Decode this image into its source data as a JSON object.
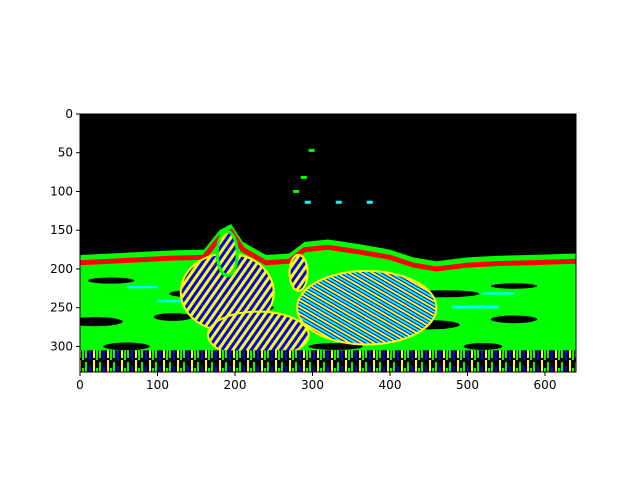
{
  "chart_data": {
    "type": "heatmap",
    "subtype": "image",
    "title": "",
    "xlabel": "",
    "ylabel": "",
    "xlim": [
      0,
      640
    ],
    "ylim": [
      333,
      0
    ],
    "xticks": [
      0,
      100,
      200,
      300,
      400,
      500,
      600
    ],
    "yticks": [
      0,
      50,
      100,
      150,
      200,
      250,
      300
    ],
    "y_axis_inverted": true,
    "grid": false,
    "colors": {
      "background": "#000000",
      "green": "#00ff00",
      "red": "#ff0000",
      "blue": "#0000ff",
      "yellow": "#ffff00",
      "cyan": "#00ffff"
    },
    "image_description_values": {
      "skyline_boundary": [
        [
          0,
          182
        ],
        [
          40,
          180
        ],
        [
          80,
          178
        ],
        [
          120,
          176
        ],
        [
          160,
          175
        ],
        [
          180,
          150
        ],
        [
          195,
          142
        ],
        [
          210,
          165
        ],
        [
          240,
          182
        ],
        [
          270,
          180
        ],
        [
          290,
          165
        ],
        [
          320,
          162
        ],
        [
          360,
          168
        ],
        [
          400,
          175
        ],
        [
          430,
          185
        ],
        [
          460,
          190
        ],
        [
          500,
          185
        ],
        [
          540,
          183
        ],
        [
          580,
          182
        ],
        [
          640,
          180
        ]
      ],
      "zebras": [
        {
          "x": 190,
          "y": 230,
          "w": 120,
          "h": 100
        },
        {
          "x": 370,
          "y": 250,
          "w": 180,
          "h": 95
        },
        {
          "x": 230,
          "y": 285,
          "w": 130,
          "h": 60
        }
      ]
    }
  }
}
